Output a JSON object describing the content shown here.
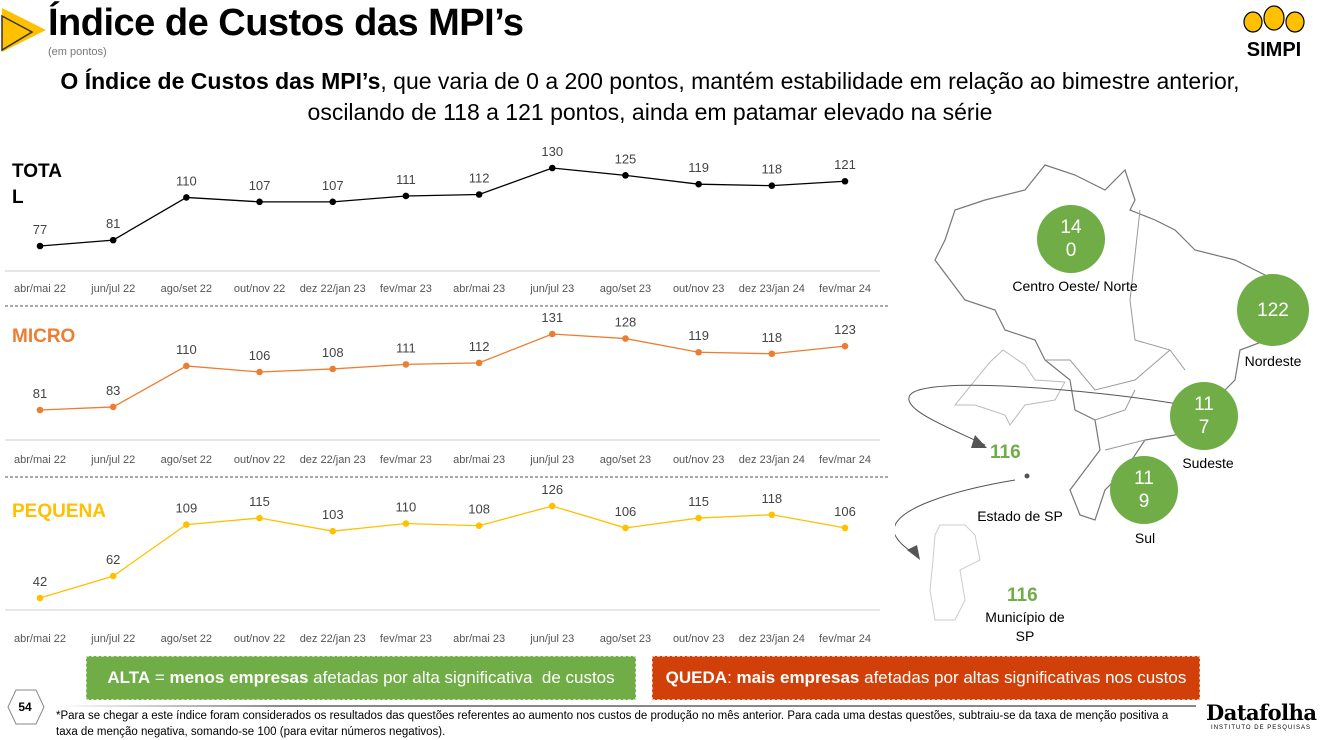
{
  "header": {
    "title": "Índice de Custos das MPI’s",
    "subtitle": "(em pontos)",
    "headline_bold": "O Índice de Custos das MPI’s",
    "headline_rest": ", que varia de 0 a 200 pontos, mantém estabilidade em relação ao bimestre anterior, oscilando de 118 a 121 pontos, ainda em patamar elevado na série",
    "logo": "SIMPI"
  },
  "chart_data": {
    "type": "line",
    "categories": [
      "abr/mai 22",
      "jun/jul 22",
      "ago/set 22",
      "out/nov 22",
      "dez 22/jan 23",
      "fev/mar 23",
      "abr/mai 23",
      "jun/jul 23",
      "ago/set 23",
      "out/nov 23",
      "dez 23/jan 24",
      "fev/mar 24"
    ],
    "series": [
      {
        "name": "TOTAL",
        "label_line1": "TOTA",
        "label_line2": "L",
        "color": "#000000",
        "values": [
          77,
          81,
          110,
          107,
          107,
          111,
          112,
          130,
          125,
          119,
          118,
          121
        ]
      },
      {
        "name": "MICRO",
        "color": "#ed7d31",
        "values": [
          81,
          83,
          110,
          106,
          108,
          111,
          112,
          131,
          128,
          119,
          118,
          123
        ]
      },
      {
        "name": "PEQUENA",
        "color": "#ffc000",
        "values": [
          42,
          62,
          109,
          115,
          103,
          110,
          108,
          126,
          106,
          115,
          118,
          106
        ]
      }
    ]
  },
  "map": {
    "regions": [
      {
        "name": "Centro Oeste/ Norte",
        "value_line1": "14",
        "value_line2": "0"
      },
      {
        "name": "Nordeste",
        "value_line1": "122",
        "value_line2": ""
      },
      {
        "name": "Sudeste",
        "value_line1": "11",
        "value_line2": "7"
      },
      {
        "name": "Sul",
        "value_line1": "11",
        "value_line2": "9"
      }
    ],
    "estado_sp": {
      "name": "Estado de SP",
      "value": "116"
    },
    "municipio_sp": {
      "name_line1": "Município de",
      "name_line2": "SP",
      "value": "116"
    },
    "accent": "#70ad47"
  },
  "legend": {
    "alta_bold1": "ALTA",
    "alta_mid": " = ",
    "alta_bold2": "menos empresas",
    "alta_rest": " afetadas por alta significativa  de custos",
    "queda_bold1": "QUEDA",
    "queda_mid": ": ",
    "queda_bold2": "mais empresas",
    "queda_rest": " afetadas por altas significativas nos custos"
  },
  "footer": {
    "page": "54",
    "note": "*Para se chegar a este índice foram considerados  os resultados das questões referentes ao aumento nos custos de produção  no mês anterior. Para cada uma destas questões, subtraiu-se da taxa de menção positiva  a taxa de menção  negativa, somando-se  100 (para evitar números  negativos).",
    "brand": "Datafolha",
    "brand_sub": "INSTITUTO DE PESQUISAS"
  }
}
